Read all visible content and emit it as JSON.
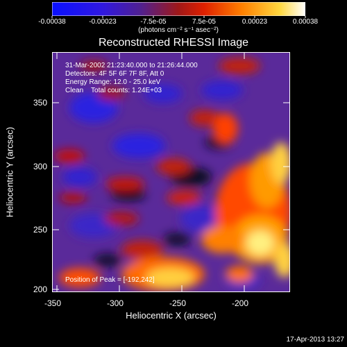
{
  "colorbar": {
    "tick_labels": [
      "-0.00038",
      "-0.00023",
      "-7.5e-05",
      "7.5e-05",
      "0.00023",
      "0.00038"
    ],
    "units_text": "(photons cm⁻² s⁻¹ asec⁻²)",
    "range": [
      -0.00038,
      0.00038
    ],
    "colors": [
      "#1010ff",
      "#3020d0",
      "#6a3aa0",
      "#a01010",
      "#ff3000",
      "#ff9a00",
      "#ffe040",
      "#ffffff"
    ]
  },
  "title": "Reconstructed RHESSI Image",
  "info": {
    "time": "31-Mar-2002 21:23:40.000 to 21:26:44.000",
    "detectors": "Detectors: 4F 5F 6F 7F 8F, Att 0",
    "energy": "Energy Range: 12.0 - 25.0 keV",
    "method": "Clean    Total counts: 1.24E+03",
    "peak": "Position of Peak = [-192,242]"
  },
  "axes": {
    "xlabel": "Heliocentric X (arcsec)",
    "ylabel": "Heliocentric Y (arcsec)",
    "x_ticks": [
      "-350",
      "-300",
      "-250",
      "-200"
    ],
    "y_ticks": [
      "350",
      "300",
      "250",
      "200"
    ],
    "xlim": [
      -355,
      -165
    ],
    "ylim": [
      197,
      388
    ]
  },
  "timestamp": "17-Apr-2013 13:27"
}
